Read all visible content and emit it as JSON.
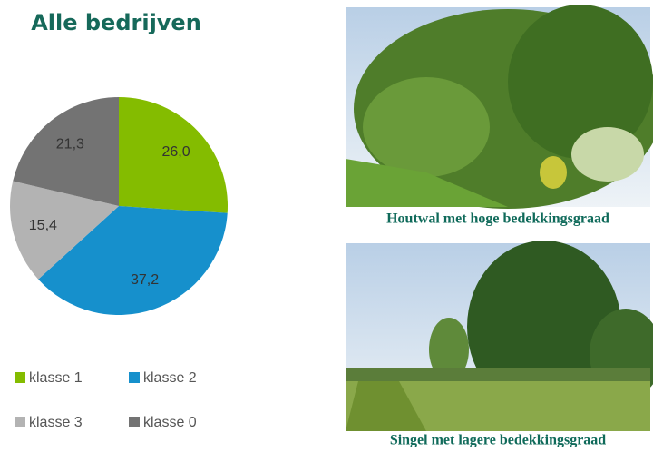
{
  "chart_data": {
    "type": "pie",
    "title": "Alle bedrijven",
    "categories": [
      "klasse 1",
      "klasse 2",
      "klasse 3",
      "klasse 0"
    ],
    "values": [
      26.0,
      37.2,
      15.4,
      21.3
    ],
    "value_labels": [
      "26,0",
      "37,2",
      "15,4",
      "21,3"
    ],
    "colors": [
      "#84bc00",
      "#1690cc",
      "#b3b3b3",
      "#737373"
    ]
  },
  "photos": [
    {
      "caption": "Houtwal met hoge bedekkingsgraad"
    },
    {
      "caption": "Singel met lagere bedekkingsgraad"
    }
  ]
}
